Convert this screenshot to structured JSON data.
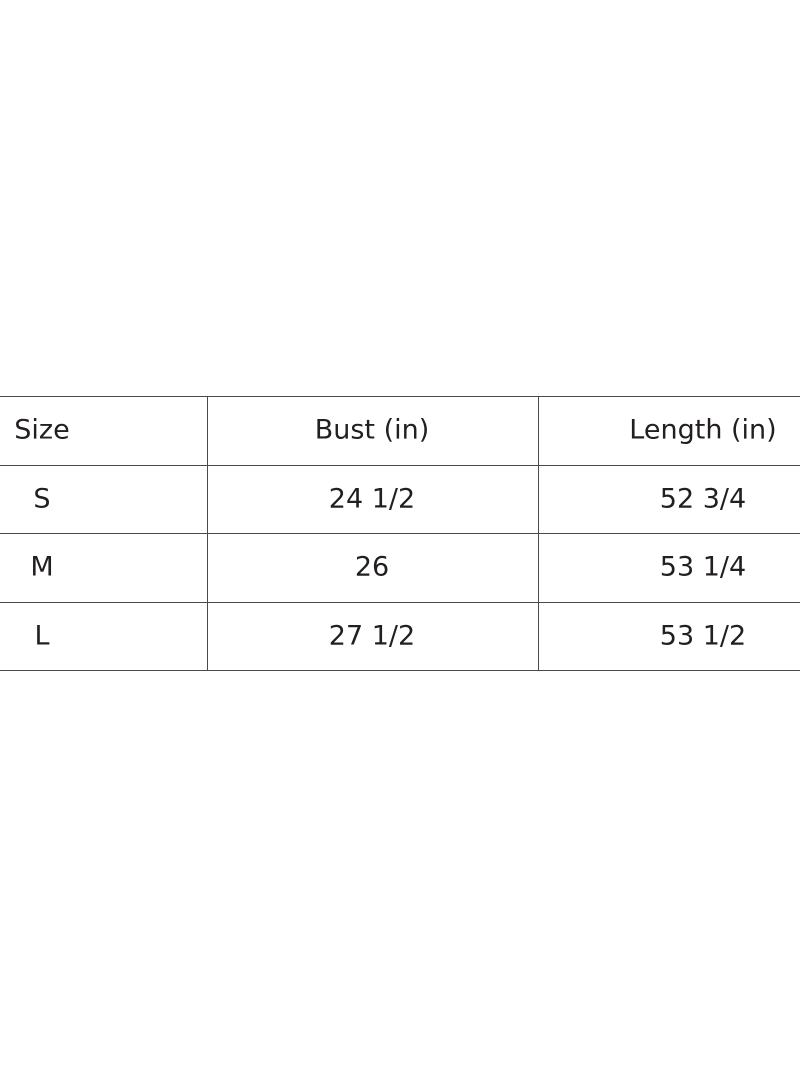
{
  "table": {
    "headers": [
      "Size",
      "Bust (in)",
      "Length (in)"
    ],
    "rows": [
      [
        "S",
        "24 1/2",
        "52 3/4"
      ],
      [
        "M",
        "26",
        "53 1/4"
      ],
      [
        "L",
        "27 1/2",
        "53 1/2"
      ]
    ]
  }
}
